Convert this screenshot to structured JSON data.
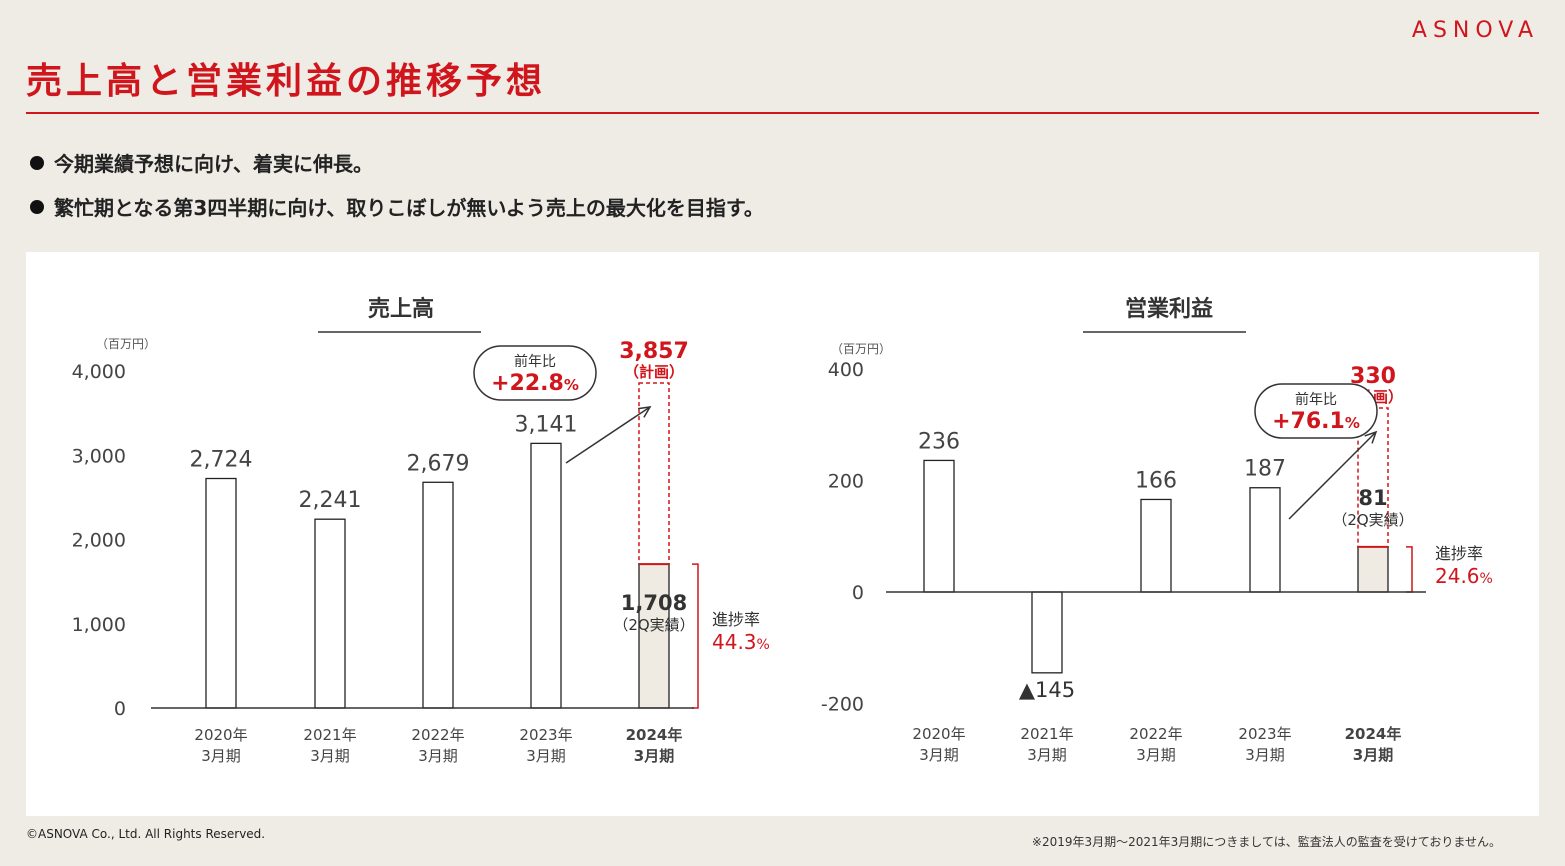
{
  "header": {
    "logo": "ASNOVA",
    "title": "売上高と営業利益の推移予想"
  },
  "bullets": [
    "今期業績予想に向け、着実に伸長。",
    "繁忙期となる第3四半期に向け、取りこぼしが無いよう売上の最大化を目指す。"
  ],
  "footer": {
    "copyright": "©ASNOVA Co., Ltd. All Rights Reserved.",
    "note": "※2019年3月期～2021年3月期につきましては、監査法人の監査を受けておりません。"
  },
  "colors": {
    "accent": "#d0161c",
    "actual_fill": "#efeae2"
  },
  "chart_data": [
    {
      "type": "bar",
      "title": "売上高",
      "unit_label": "（百万円）",
      "categories": [
        "2020年\n3月期",
        "2021年\n3月期",
        "2022年\n3月期",
        "2023年\n3月期",
        "2024年\n3月期"
      ],
      "values": [
        2724,
        2241,
        2679,
        3141,
        1708
      ],
      "value_labels": [
        "2,724",
        "2,241",
        "2,679",
        "3,141",
        "1,708"
      ],
      "plan": {
        "value": 3857,
        "label": "3,857",
        "sublabel": "（計画）"
      },
      "actual_sublabel": "（2Q実績）",
      "yoy": {
        "label": "前年比",
        "value": "+22.8",
        "unit": "%"
      },
      "progress": {
        "label": "進捗率",
        "value": "44.3",
        "unit": "%"
      },
      "yticks": [
        0,
        1000,
        2000,
        3000,
        4000
      ],
      "ytick_labels": [
        "0",
        "1,000",
        "2,000",
        "3,000",
        "4,000"
      ],
      "ylim": [
        0,
        4000
      ],
      "grid": false
    },
    {
      "type": "bar",
      "title": "営業利益",
      "unit_label": "（百万円）",
      "categories": [
        "2020年\n3月期",
        "2021年\n3月期",
        "2022年\n3月期",
        "2023年\n3月期",
        "2024年\n3月期"
      ],
      "values": [
        236,
        -145,
        166,
        187,
        81
      ],
      "value_labels": [
        "236",
        "▲145",
        "166",
        "187",
        "81"
      ],
      "plan": {
        "value": 330,
        "label": "330",
        "sublabel": "（計画）"
      },
      "actual_sublabel": "（2Q実績）",
      "yoy": {
        "label": "前年比",
        "value": "+76.1",
        "unit": "%"
      },
      "progress": {
        "label": "進捗率",
        "value": "24.6",
        "unit": "%"
      },
      "yticks": [
        -200,
        0,
        200,
        400
      ],
      "ytick_labels": [
        "-200",
        "0",
        "200",
        "400"
      ],
      "ylim": [
        -200,
        400
      ],
      "grid": false
    }
  ]
}
